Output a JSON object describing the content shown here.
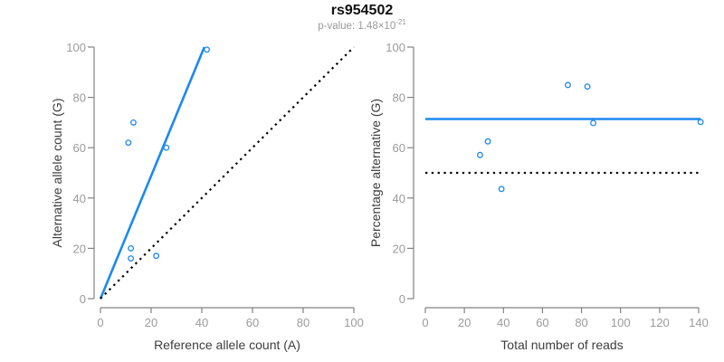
{
  "title": "rs954502",
  "subtitle": {
    "label": "p-value: 1.48×10",
    "exponent": "-21"
  },
  "colors": {
    "accent_blue": "#1E88F0",
    "dotted_black": "#000000",
    "axis_gray": "#828282",
    "tick_label_gray": "#9b9b9b",
    "axis_label_dark": "#3d3d3d",
    "subtitle_gray": "#9b9b9b"
  },
  "chart_data": [
    {
      "type": "scatter",
      "name": "allele-counts",
      "xlabel": "Reference allele count (A)",
      "ylabel": "Alternative allele count (G)",
      "xlim": [
        0,
        100
      ],
      "ylim": [
        0,
        100
      ],
      "xticks": [
        0,
        20,
        40,
        60,
        80,
        100
      ],
      "yticks": [
        0,
        20,
        40,
        60,
        80,
        100
      ],
      "grid": false,
      "legend": null,
      "points": [
        [
          13,
          70
        ],
        [
          11,
          62
        ],
        [
          26,
          60
        ],
        [
          42,
          99
        ],
        [
          12,
          20
        ],
        [
          12,
          16
        ],
        [
          22,
          17
        ]
      ],
      "lines": [
        {
          "name": "fit-line",
          "style": "solid",
          "x1": 0,
          "y1": 0,
          "x2": 41,
          "y2": 100
        },
        {
          "name": "identity-line",
          "style": "dotted",
          "x1": 0,
          "y1": 0,
          "x2": 100,
          "y2": 100
        }
      ]
    },
    {
      "type": "scatter",
      "name": "percentage-vs-coverage",
      "xlabel": "Total number of reads",
      "ylabel": "Percentage alternative (G)",
      "xlim": [
        0,
        141
      ],
      "ylim": [
        0,
        100
      ],
      "xticks": [
        0,
        20,
        40,
        60,
        80,
        100,
        120,
        140
      ],
      "yticks": [
        0,
        20,
        40,
        60,
        80,
        100
      ],
      "grid": false,
      "legend": null,
      "points": [
        [
          83,
          84.3
        ],
        [
          73,
          84.9
        ],
        [
          86,
          69.8
        ],
        [
          141,
          70.2
        ],
        [
          32,
          62.5
        ],
        [
          28,
          57.1
        ],
        [
          39,
          43.6
        ]
      ],
      "lines": [
        {
          "name": "mean-percentage-line",
          "style": "solid",
          "x1": 0,
          "y1": 71.4,
          "x2": 141,
          "y2": 71.4
        },
        {
          "name": "fifty-percent-line",
          "style": "dotted",
          "x1": 0,
          "y1": 50,
          "x2": 141,
          "y2": 50
        }
      ]
    }
  ]
}
